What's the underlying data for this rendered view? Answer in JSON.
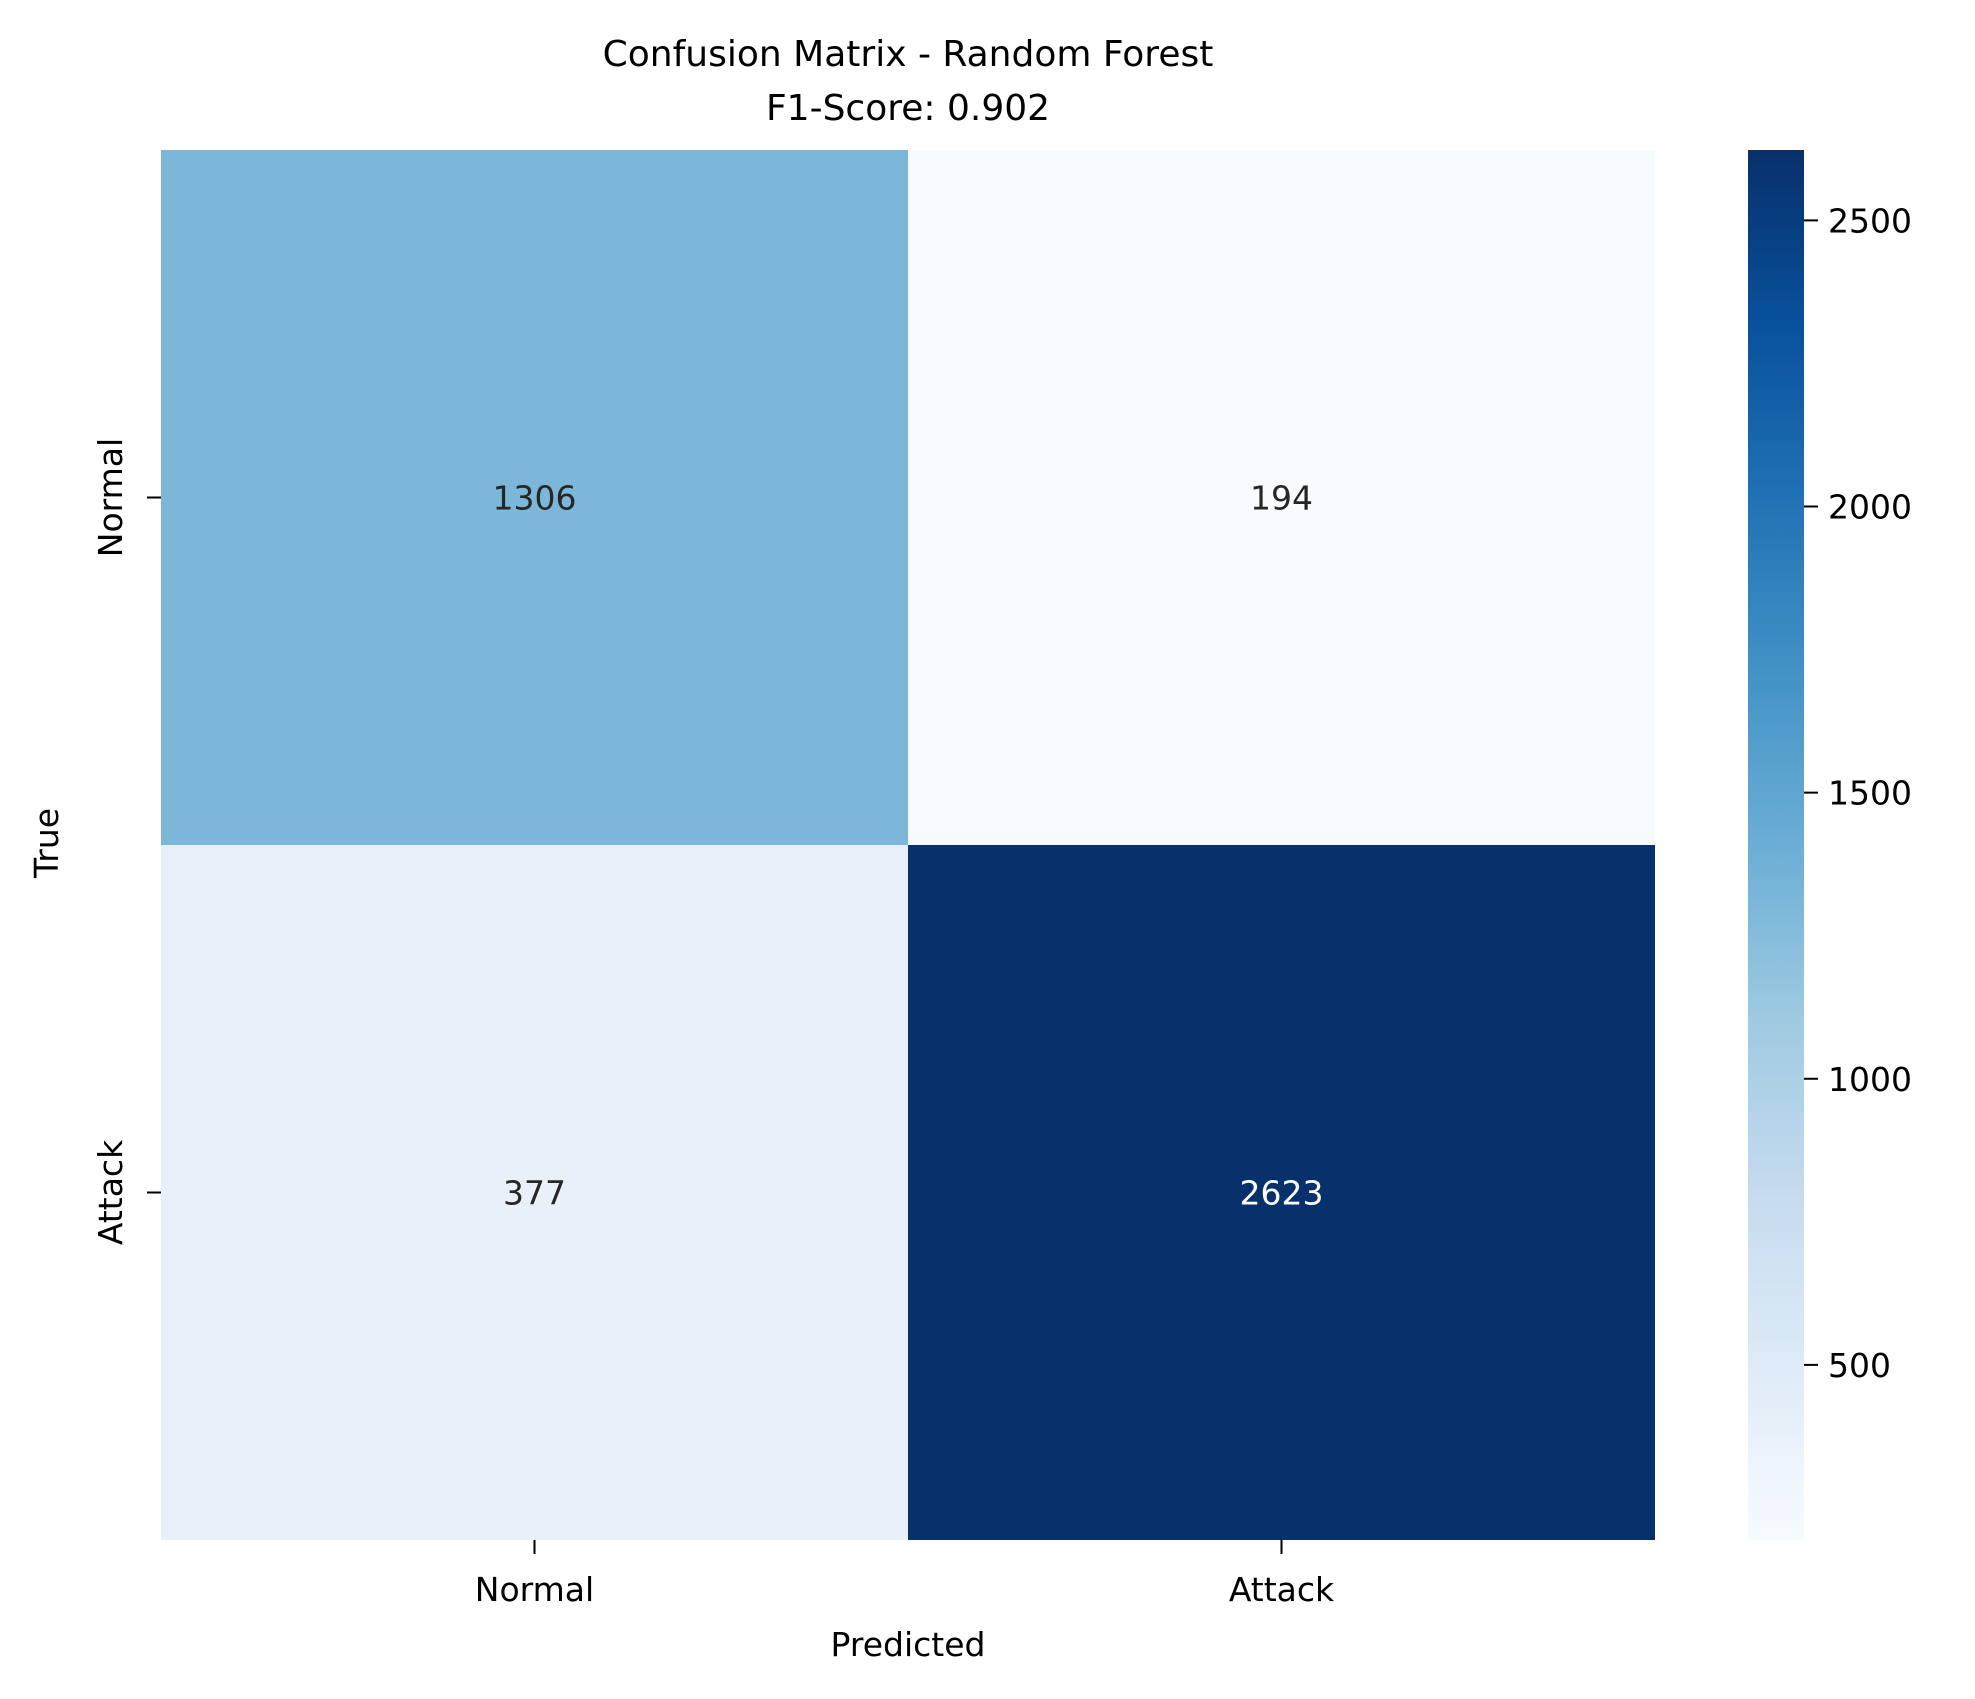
{
  "chart_data": {
    "type": "heatmap",
    "title": "Confusion Matrix - Random Forest",
    "subtitle": "F1-Score: 0.902",
    "xlabel": "Predicted",
    "ylabel": "True",
    "x_categories": [
      "Normal",
      "Attack"
    ],
    "y_categories": [
      "Normal",
      "Attack"
    ],
    "values": [
      [
        1306,
        194
      ],
      [
        377,
        2623
      ]
    ],
    "colormap": "Blues",
    "colorbar": {
      "range": [
        194,
        2623
      ],
      "ticks": [
        500,
        1000,
        1500,
        2000,
        2500
      ]
    },
    "colors": {
      "low": "#f7fbff",
      "high": "#08306b",
      "annotation_dark": "#262626",
      "annotation_light": "#ffffff"
    }
  }
}
